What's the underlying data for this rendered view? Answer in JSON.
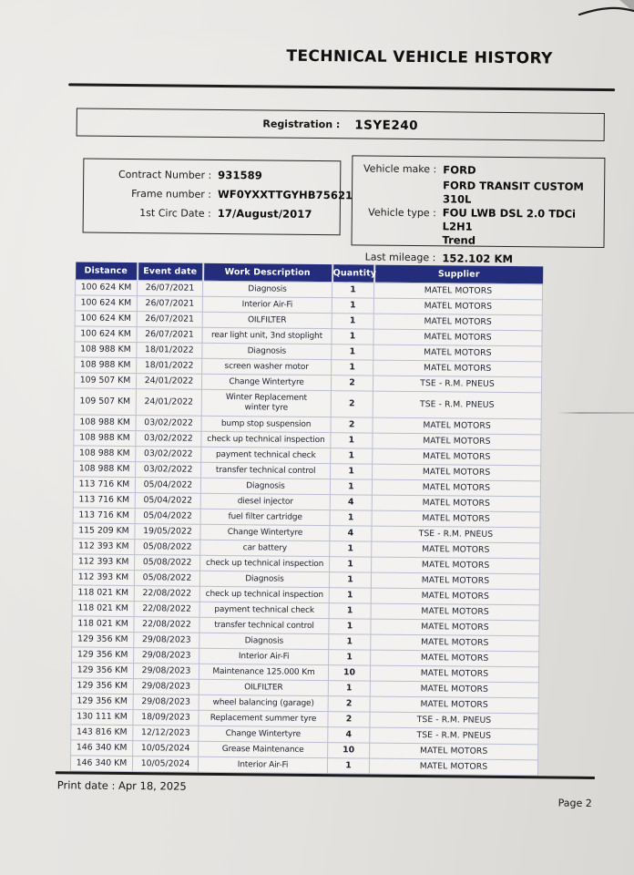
{
  "title": "TECHNICAL VEHICLE HISTORY",
  "registration": {
    "label": "Registration :",
    "value": "1SYE240"
  },
  "contract_box": {
    "rows": [
      {
        "label": "Contract Number :",
        "value": "931589"
      },
      {
        "label": "Frame number :",
        "value": "WF0YXXTTGYHB75621"
      },
      {
        "label": "1st Circ Date :",
        "value": "17/August/2017"
      }
    ]
  },
  "vehicle_box": {
    "make_label": "Vehicle make :",
    "make_value": "FORD",
    "type_label": "Vehicle type :",
    "type_lines": [
      "FORD TRANSIT CUSTOM 310L",
      "FOU LWB DSL 2.0 TDCi L2H1",
      "Trend"
    ],
    "mileage_label": "Last mileage :",
    "mileage_value": "152.102 KM"
  },
  "table": {
    "headers": [
      "Distance",
      "Event date",
      "Work Description",
      "Quantity",
      "Supplier"
    ],
    "rows": [
      {
        "distance": "100 624 KM",
        "date": "26/07/2021",
        "desc": "Diagnosis",
        "qty": "1",
        "supplier": "MATEL MOTORS"
      },
      {
        "distance": "100 624 KM",
        "date": "26/07/2021",
        "desc": "Interior Air-Fi",
        "qty": "1",
        "supplier": "MATEL MOTORS"
      },
      {
        "distance": "100 624 KM",
        "date": "26/07/2021",
        "desc": "OILFILTER",
        "qty": "1",
        "supplier": "MATEL MOTORS"
      },
      {
        "distance": "100 624 KM",
        "date": "26/07/2021",
        "desc": "rear light unit, 3nd stoplight",
        "qty": "1",
        "supplier": "MATEL MOTORS"
      },
      {
        "distance": "108 988 KM",
        "date": "18/01/2022",
        "desc": "Diagnosis",
        "qty": "1",
        "supplier": "MATEL MOTORS"
      },
      {
        "distance": "108 988 KM",
        "date": "18/01/2022",
        "desc": "screen washer motor",
        "qty": "1",
        "supplier": "MATEL MOTORS"
      },
      {
        "distance": "109 507 KM",
        "date": "24/01/2022",
        "desc": "Change Wintertyre",
        "qty": "2",
        "supplier": "TSE - R.M. PNEUS"
      },
      {
        "distance": "109 507 KM",
        "date": "24/01/2022",
        "desc": "Winter Replacement winter tyre",
        "qty": "2",
        "supplier": "TSE - R.M. PNEUS",
        "tall": true
      },
      {
        "distance": "108 988 KM",
        "date": "03/02/2022",
        "desc": "bump stop suspension",
        "qty": "2",
        "supplier": "MATEL MOTORS"
      },
      {
        "distance": "108 988 KM",
        "date": "03/02/2022",
        "desc": "check up technical inspection",
        "qty": "1",
        "supplier": "MATEL MOTORS"
      },
      {
        "distance": "108 988 KM",
        "date": "03/02/2022",
        "desc": "payment technical check",
        "qty": "1",
        "supplier": "MATEL MOTORS"
      },
      {
        "distance": "108 988 KM",
        "date": "03/02/2022",
        "desc": "transfer technical control",
        "qty": "1",
        "supplier": "MATEL MOTORS"
      },
      {
        "distance": "113 716 KM",
        "date": "05/04/2022",
        "desc": "Diagnosis",
        "qty": "1",
        "supplier": "MATEL MOTORS"
      },
      {
        "distance": "113 716 KM",
        "date": "05/04/2022",
        "desc": "diesel injector",
        "qty": "4",
        "supplier": "MATEL MOTORS"
      },
      {
        "distance": "113 716 KM",
        "date": "05/04/2022",
        "desc": "fuel filter cartridge",
        "qty": "1",
        "supplier": "MATEL MOTORS"
      },
      {
        "distance": "115 209 KM",
        "date": "19/05/2022",
        "desc": "Change Wintertyre",
        "qty": "4",
        "supplier": "TSE - R.M. PNEUS"
      },
      {
        "distance": "112 393 KM",
        "date": "05/08/2022",
        "desc": "car battery",
        "qty": "1",
        "supplier": "MATEL MOTORS"
      },
      {
        "distance": "112 393 KM",
        "date": "05/08/2022",
        "desc": "check up technical inspection",
        "qty": "1",
        "supplier": "MATEL MOTORS"
      },
      {
        "distance": "112 393 KM",
        "date": "05/08/2022",
        "desc": "Diagnosis",
        "qty": "1",
        "supplier": "MATEL MOTORS"
      },
      {
        "distance": "118 021 KM",
        "date": "22/08/2022",
        "desc": "check up technical inspection",
        "qty": "1",
        "supplier": "MATEL MOTORS"
      },
      {
        "distance": "118 021 KM",
        "date": "22/08/2022",
        "desc": "payment technical check",
        "qty": "1",
        "supplier": "MATEL MOTORS"
      },
      {
        "distance": "118 021 KM",
        "date": "22/08/2022",
        "desc": "transfer technical control",
        "qty": "1",
        "supplier": "MATEL MOTORS"
      },
      {
        "distance": "129 356 KM",
        "date": "29/08/2023",
        "desc": "Diagnosis",
        "qty": "1",
        "supplier": "MATEL MOTORS"
      },
      {
        "distance": "129 356 KM",
        "date": "29/08/2023",
        "desc": "Interior Air-Fi",
        "qty": "1",
        "supplier": "MATEL MOTORS"
      },
      {
        "distance": "129 356 KM",
        "date": "29/08/2023",
        "desc": "Maintenance 125.000 Km",
        "qty": "10",
        "supplier": "MATEL MOTORS"
      },
      {
        "distance": "129 356 KM",
        "date": "29/08/2023",
        "desc": "OILFILTER",
        "qty": "1",
        "supplier": "MATEL MOTORS"
      },
      {
        "distance": "129 356 KM",
        "date": "29/08/2023",
        "desc": "wheel balancing (garage)",
        "qty": "2",
        "supplier": "MATEL MOTORS"
      },
      {
        "distance": "130 111 KM",
        "date": "18/09/2023",
        "desc": "Replacement summer tyre",
        "qty": "2",
        "supplier": "TSE - R.M. PNEUS"
      },
      {
        "distance": "143 816 KM",
        "date": "12/12/2023",
        "desc": "Change Wintertyre",
        "qty": "4",
        "supplier": "TSE - R.M. PNEUS"
      },
      {
        "distance": "146 340 KM",
        "date": "10/05/2024",
        "desc": "Grease Maintenance",
        "qty": "10",
        "supplier": "MATEL MOTORS"
      },
      {
        "distance": "146 340 KM",
        "date": "10/05/2024",
        "desc": "Interior Air-Fi",
        "qty": "1",
        "supplier": "MATEL MOTORS"
      }
    ]
  },
  "footer": {
    "print_date_label": "Print date :",
    "print_date_value": "Apr 18, 2025",
    "page": "Page 2"
  },
  "colors": {
    "header_bg": "#232d7b",
    "table_border": "#b9bfd0",
    "ink": "#1a1a1a",
    "table_ink": "#1d2230"
  }
}
